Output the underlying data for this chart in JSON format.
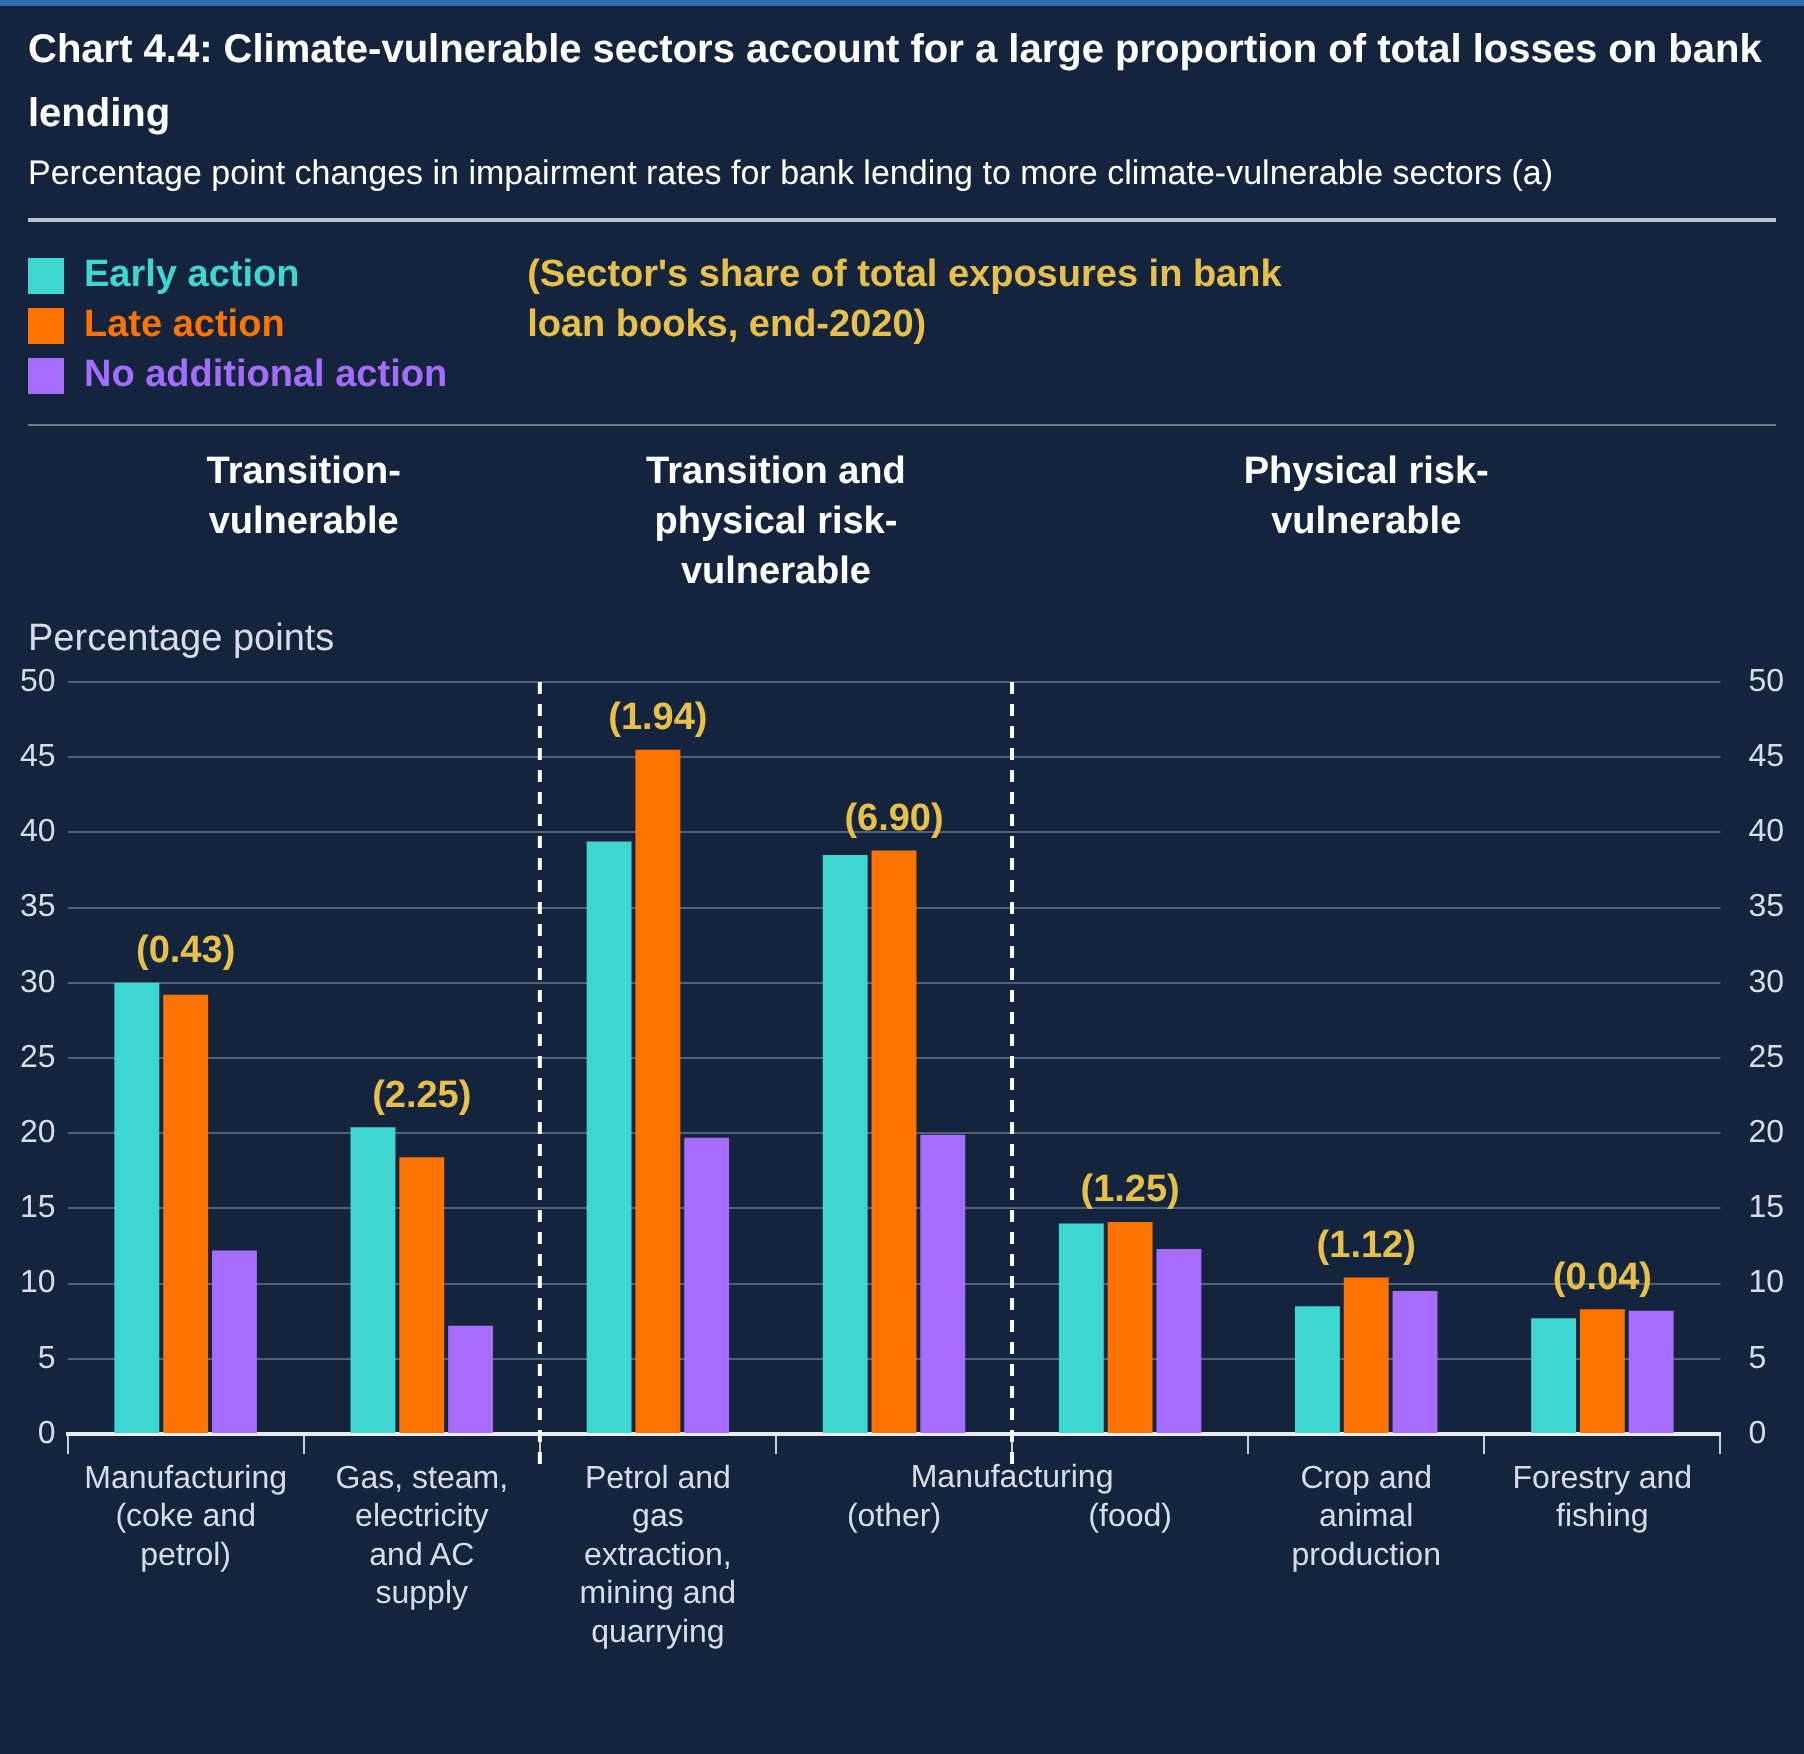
{
  "chart_data": {
    "type": "bar",
    "title": "Chart 4.4: Climate-vulnerable sectors account for a large proportion of total losses on bank lending",
    "subtitle": "Percentage point changes in impairment rates for bank lending to more climate-vulnerable sectors (a)",
    "ylabel": "Percentage points",
    "categories": [
      "Manufacturing (coke and petrol)",
      "Gas, steam, electricity and AC supply",
      "Petrol and gas extraction, mining and quarrying",
      "(other)",
      "(food)",
      "Crop and animal production",
      "Forestry and fishing"
    ],
    "series": [
      {
        "name": "Early action",
        "color": "#3dd6d0",
        "values": [
          30.0,
          20.4,
          39.4,
          38.5,
          14.0,
          8.5,
          7.7
        ]
      },
      {
        "name": "Late action",
        "color": "#ff7300",
        "values": [
          29.2,
          18.4,
          45.5,
          38.8,
          14.1,
          10.4,
          8.3
        ]
      },
      {
        "name": "No additional action",
        "color": "#a66cff",
        "values": [
          12.2,
          7.2,
          19.7,
          19.9,
          12.3,
          9.5,
          8.2
        ]
      }
    ],
    "ylim": [
      0,
      50
    ],
    "yticks": [
      0,
      5,
      10,
      15,
      20,
      25,
      30,
      35,
      40,
      45,
      50
    ],
    "y2lim": [
      0,
      50
    ],
    "y2ticks": [
      0,
      5,
      10,
      15,
      20,
      25,
      30,
      35,
      40,
      45,
      50
    ],
    "grid": "y",
    "legend": "top left",
    "annotations": [
      "(Sector's share of total exposures in bank loan books, end-2020)",
      "Transition-vulnerable",
      "Transition and physical risk-vulnerable",
      "Physical risk-vulnerable",
      "Manufacturing",
      "(0.43)",
      "(2.25)",
      "(1.94)",
      "(6.90)",
      "(1.25)",
      "(1.12)",
      "(0.04)"
    ]
  }
}
